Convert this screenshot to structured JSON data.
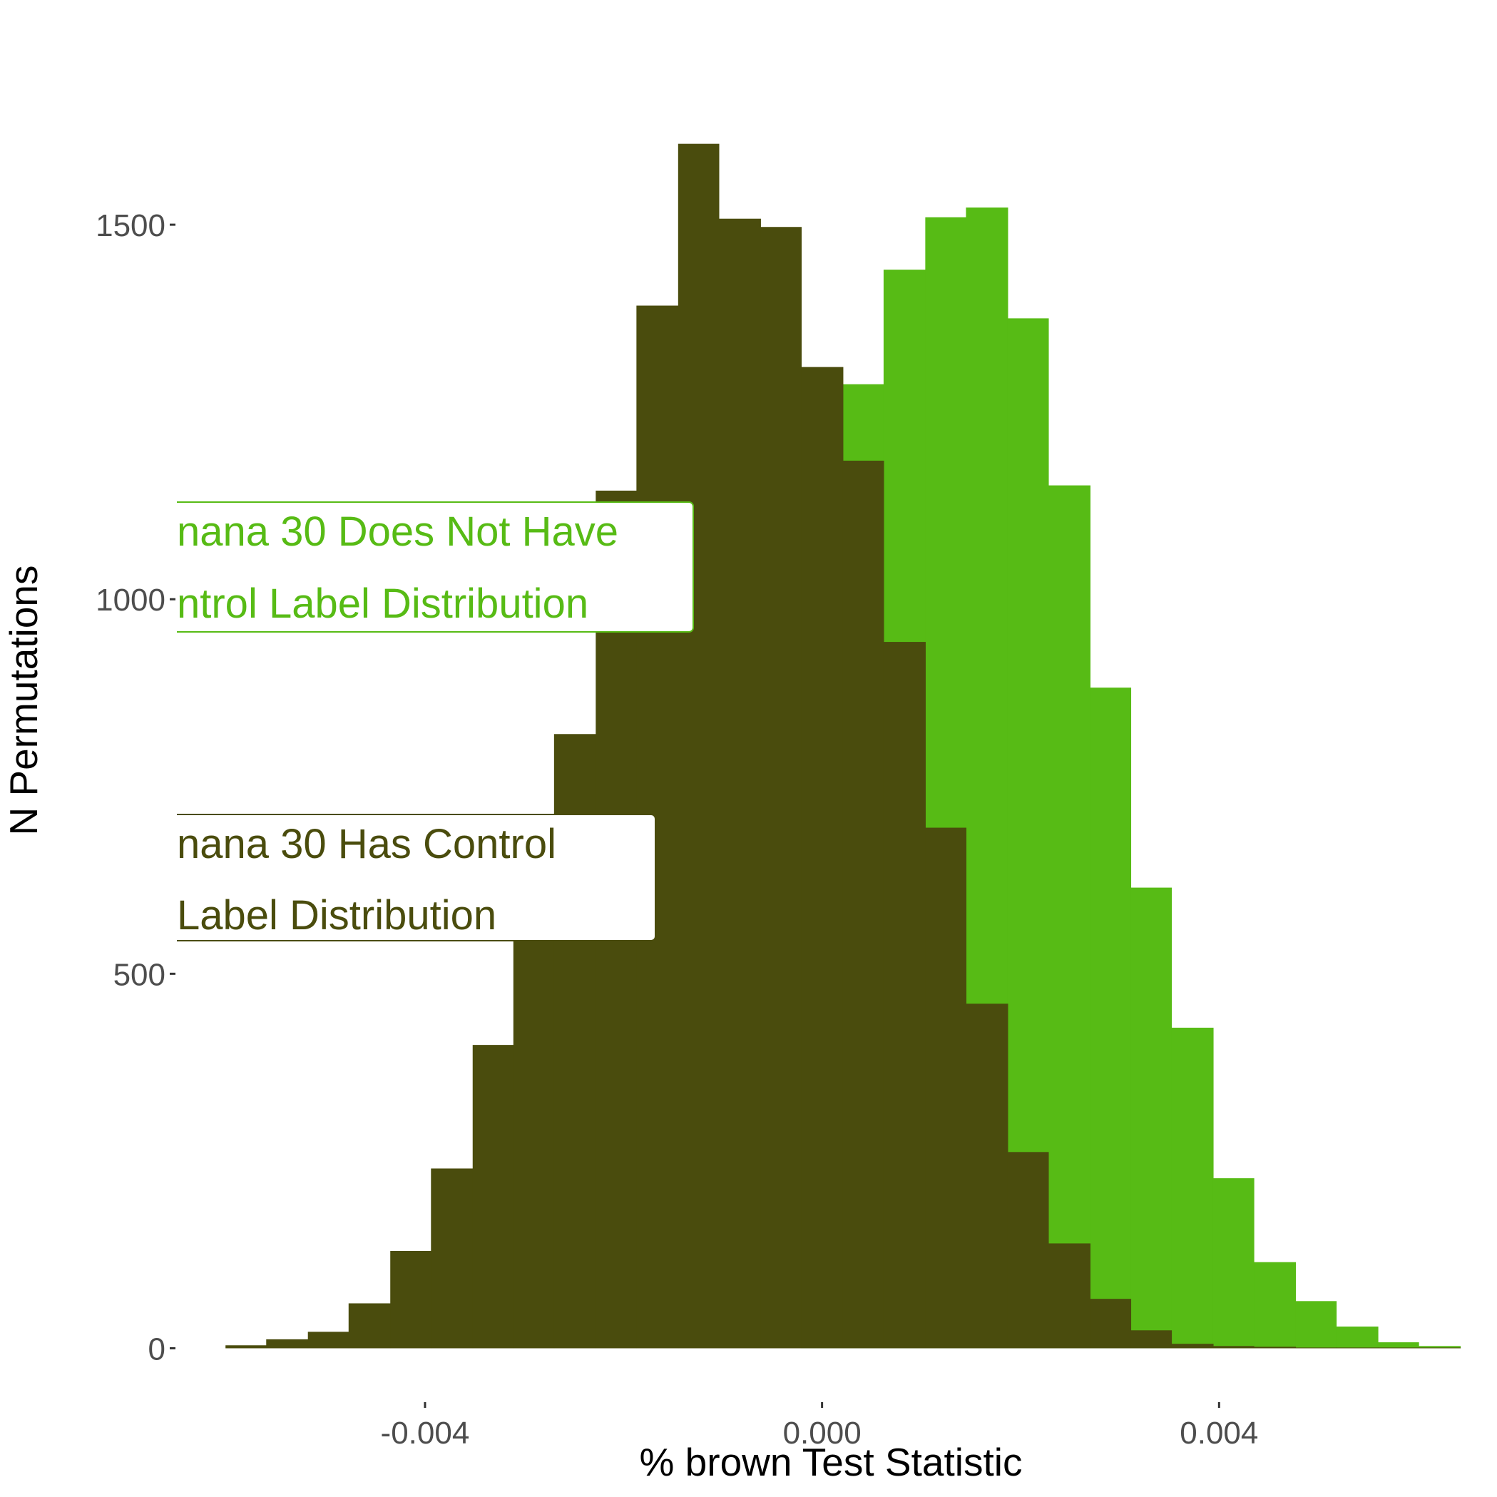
{
  "chart_data": {
    "type": "bar",
    "subtype": "histogram",
    "xlabel": "% brown Test Statistic",
    "ylabel": "N Permutations",
    "xlim": [
      -0.0065,
      0.0068
    ],
    "ylim": [
      -70,
      1800
    ],
    "x_ticks": [
      {
        "value": -0.004,
        "label": "-0.004"
      },
      {
        "value": 0.0,
        "label": "0.000"
      },
      {
        "value": 0.004,
        "label": "0.004"
      }
    ],
    "y_ticks": [
      {
        "value": 0,
        "label": "0"
      },
      {
        "value": 500,
        "label": "500"
      },
      {
        "value": 1000,
        "label": "1000"
      },
      {
        "value": 1500,
        "label": "1500"
      }
    ],
    "bin_edges": [
      -0.00601,
      -0.0056,
      -0.00518,
      -0.00477,
      -0.00435,
      -0.00394,
      -0.00352,
      -0.00311,
      -0.0027,
      -0.00228,
      -0.00187,
      -0.00145,
      -0.00104,
      -0.00062,
      -0.00021,
      0.00021,
      0.00062,
      0.00104,
      0.00145,
      0.00187,
      0.00228,
      0.0027,
      0.00311,
      0.00352,
      0.00394,
      0.00435,
      0.00477,
      0.00518,
      0.0056,
      0.00601,
      0.00643
    ],
    "series": [
      {
        "color": "#57bb15",
        "values": [
          0,
          0,
          0,
          0,
          0,
          0,
          0,
          0,
          0,
          0,
          0,
          0,
          0,
          0,
          25,
          1287,
          1440,
          1510,
          1523,
          1375,
          1152,
          882,
          615,
          428,
          227,
          115,
          63,
          29,
          8,
          3
        ]
      },
      {
        "color": "#4a4c0d",
        "values": [
          4,
          12,
          22,
          60,
          130,
          240,
          405,
          570,
          820,
          1145,
          1392,
          1608,
          1508,
          1497,
          1310,
          1185,
          943,
          695,
          460,
          262,
          140,
          66,
          24,
          6,
          3,
          2,
          1,
          1,
          1,
          1
        ]
      }
    ],
    "annotations": [
      {
        "lines": [
          "nana 30 Does Not Have",
          "ntrol Label Distribution"
        ],
        "color": "#57bb15"
      },
      {
        "lines": [
          "nana 30 Has Control",
          "Label Distribution"
        ],
        "color": "#4a4c0d"
      }
    ],
    "grid": false,
    "legend": "none"
  }
}
